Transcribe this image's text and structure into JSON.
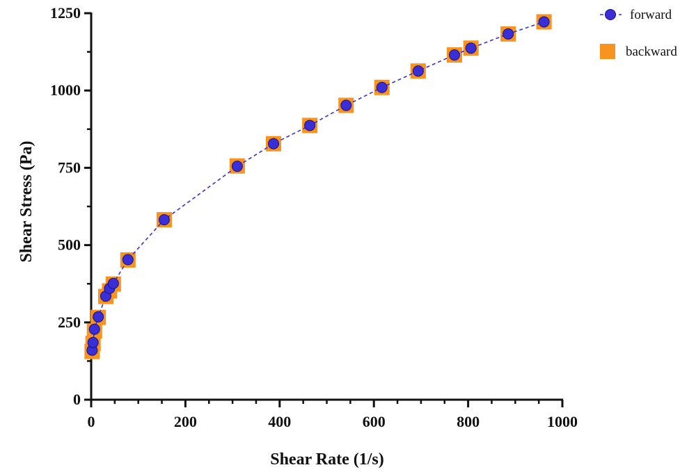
{
  "chart_data": {
    "type": "scatter",
    "xlabel": "Shear Rate (1/s)",
    "ylabel": "Shear Stress (Pa)",
    "xlim": [
      0,
      1000
    ],
    "ylim": [
      0,
      1250
    ],
    "xticks": [
      0,
      200,
      400,
      600,
      800,
      1000
    ],
    "yticks": [
      0,
      250,
      500,
      750,
      1000,
      1250
    ],
    "grid": false,
    "legend_position": "top-right",
    "series": [
      {
        "name": "forward",
        "marker": "circle",
        "line": "dashed",
        "color": "#3a2fd6",
        "edge_color": "#1a1080",
        "x": [
          2,
          4,
          7,
          15,
          31,
          39,
          47,
          78,
          155,
          310,
          387,
          464,
          541,
          617,
          694,
          771,
          806,
          885,
          961
        ],
        "y": [
          160,
          185,
          228,
          268,
          335,
          360,
          376,
          453,
          582,
          755,
          828,
          887,
          952,
          1010,
          1063,
          1115,
          1137,
          1183,
          1222
        ]
      },
      {
        "name": "backward",
        "marker": "square",
        "color": "#f7931e",
        "x": [
          2,
          4,
          7,
          15,
          31,
          39,
          47,
          78,
          155,
          310,
          387,
          464,
          541,
          617,
          694,
          771,
          806,
          885,
          961
        ],
        "y": [
          156,
          182,
          222,
          266,
          334,
          352,
          374,
          452,
          582,
          756,
          828,
          887,
          952,
          1010,
          1063,
          1115,
          1137,
          1183,
          1222
        ]
      }
    ]
  }
}
